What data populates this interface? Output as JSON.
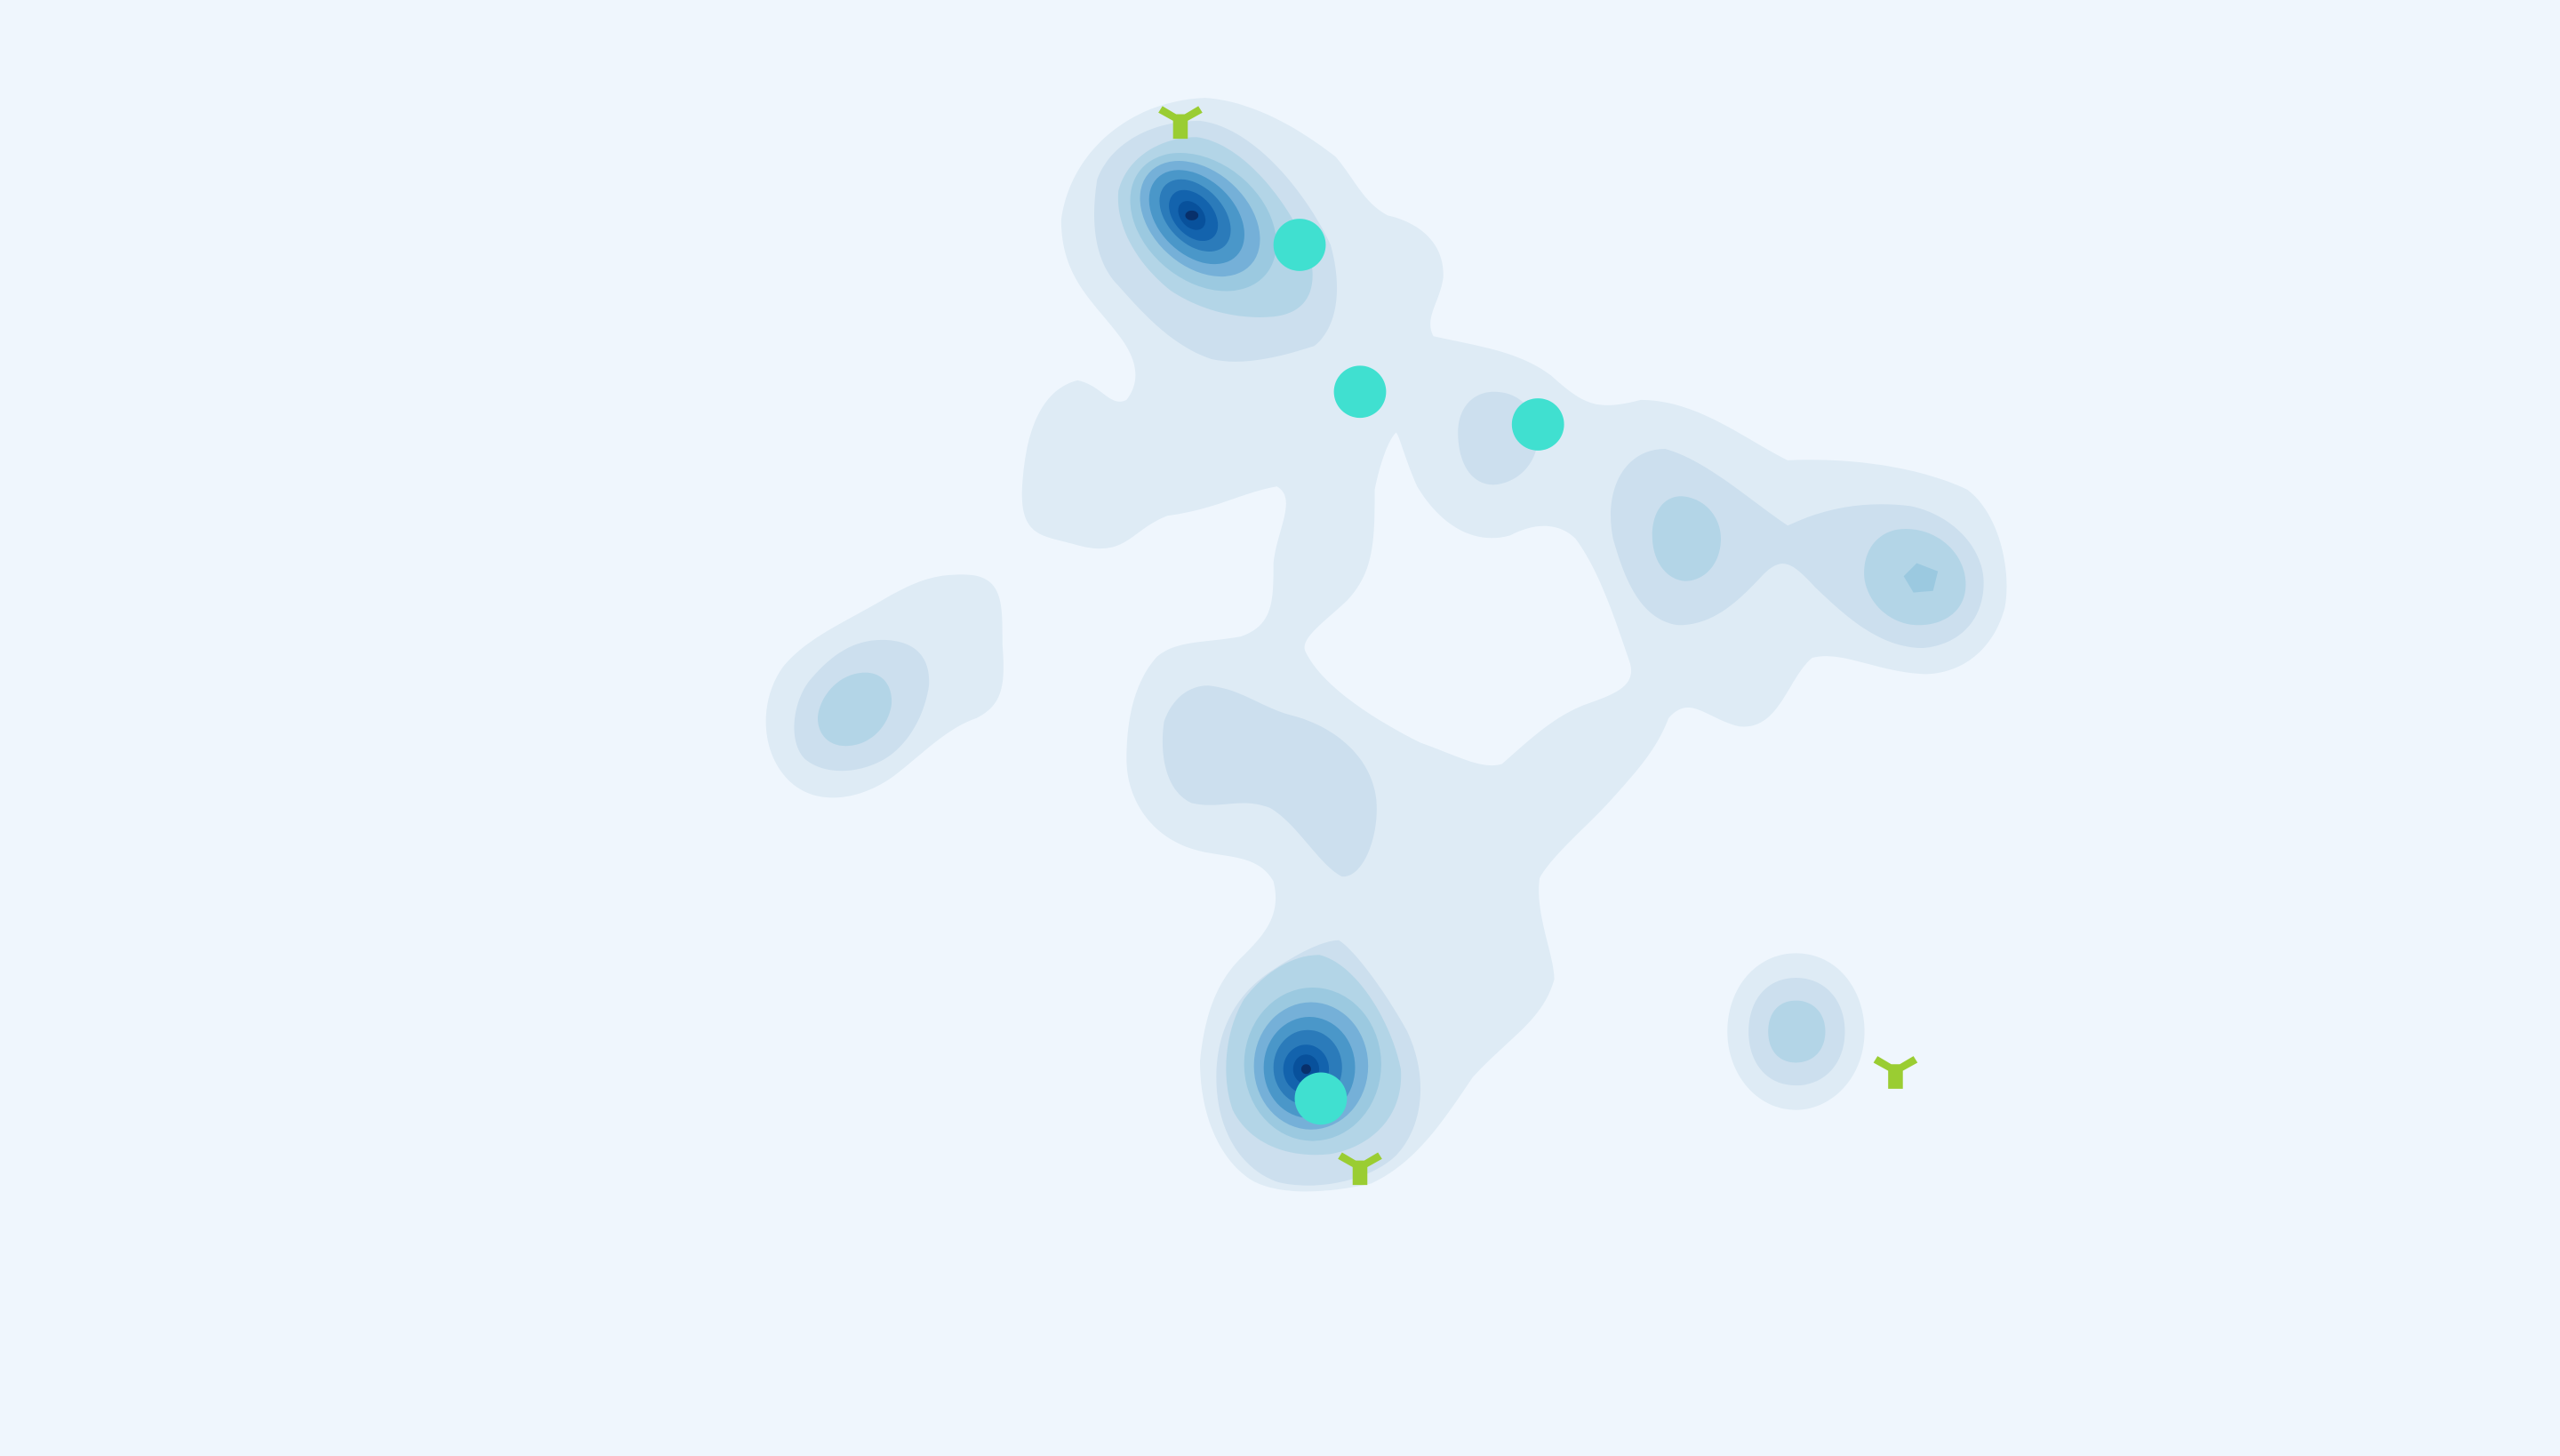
{
  "chart_data": {
    "type": "density-contour",
    "xlim": [
      0,
      1568
    ],
    "ylim": [
      0,
      892
    ],
    "y_direction": "down",
    "axes_visible": false,
    "grid": false,
    "legend": "none",
    "colors": {
      "background": "#EFF6FD",
      "density_levels": [
        "#DEEBF5",
        "#CCDFEE",
        "#B3D5E7",
        "#9BC9E0",
        "#75B0D8",
        "#4A97C9",
        "#2B7BBA",
        "#1363AD",
        "#08519C",
        "#08306B"
      ],
      "dot": "#40E0D0",
      "tri_marker": "#9ACD32"
    },
    "density_peaks": [
      {
        "x": 730,
        "y": 132,
        "levels": 10
      },
      {
        "x": 800,
        "y": 655,
        "levels": 10
      },
      {
        "x": 1175,
        "y": 355,
        "levels": 4
      },
      {
        "x": 1030,
        "y": 330,
        "levels": 3
      },
      {
        "x": 522,
        "y": 433,
        "levels": 3
      },
      {
        "x": 1100,
        "y": 632,
        "levels": 3
      },
      {
        "x": 777,
        "y": 477,
        "levels": 2
      },
      {
        "x": 918,
        "y": 267,
        "levels": 2
      }
    ],
    "series": [
      {
        "marker": "circle",
        "color": "#40E0D0",
        "points": [
          {
            "x": 796,
            "y": 150
          },
          {
            "x": 833,
            "y": 240
          },
          {
            "x": 942,
            "y": 260
          },
          {
            "x": 809,
            "y": 673
          }
        ]
      },
      {
        "marker": "tri_down",
        "color": "#9ACD32",
        "points": [
          {
            "x": 723,
            "y": 72
          },
          {
            "x": 833,
            "y": 713
          },
          {
            "x": 1161,
            "y": 654
          }
        ]
      }
    ]
  }
}
